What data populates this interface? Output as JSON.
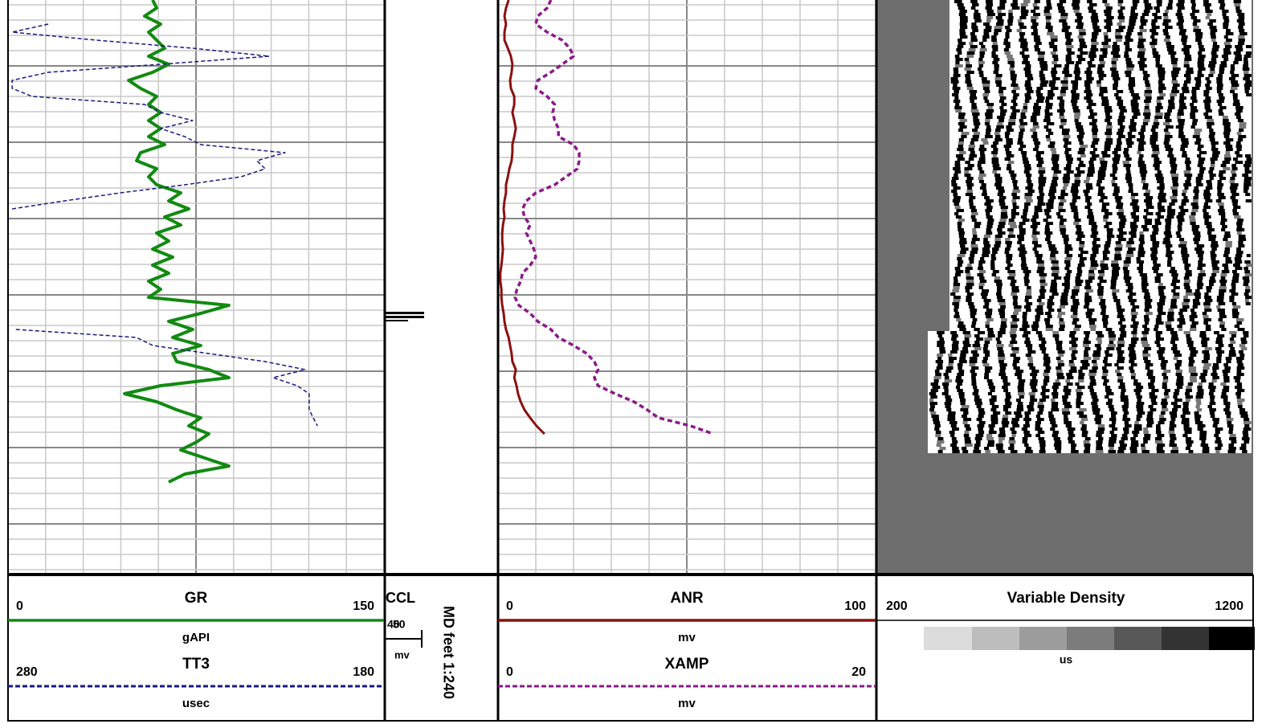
{
  "tracks": [
    {
      "curves": [
        {
          "name": "GR",
          "unit": "gAPI",
          "scale": [
            0,
            150
          ],
          "color": "#128a12",
          "dash": false,
          "values": [
            57.7,
            59.3,
            54.5,
            60.9,
            56.1,
            59.3,
            62.5,
            56.1,
            64.1,
            57.7,
            48.1,
            52.9,
            59.3,
            56.1,
            60.9,
            56.1,
            60.9,
            56.1,
            62.5,
            52.9,
            51.3,
            59.3,
            56.1,
            59.3,
            68.9,
            64.1,
            72.1,
            62.5,
            68.9,
            59.3,
            64.1,
            57.7,
            65.7,
            57.7,
            64.1,
            56.1,
            60.9,
            56.1,
            88.1,
            76.9,
            64.1,
            73.7,
            65.7,
            76.9,
            65.7,
            67.3,
            80.1,
            88.1,
            60.9,
            46.5,
            59.3,
            67.3,
            76.9,
            72.1,
            80.1,
            75.3,
            68.9,
            78.5,
            88.1,
            70.5,
            64.1
          ]
        },
        {
          "name": "TT3",
          "unit": "usec",
          "scale": [
            280,
            180
          ],
          "color": "#1a1a80",
          "dash": true,
          "values": [
            null,
            null,
            null,
            269.3,
            278.9,
            256.5,
            230.9,
            210.5,
            239.4,
            269.3,
            278.9,
            278.9,
            273.6,
            243.7,
            239.4,
            230.9,
            239.4,
            233.0,
            228.7,
            206.3,
            213.8,
            211.6,
            218.0,
            233.0,
            250.1,
            265.0,
            278.9,
            null,
            null,
            null,
            null,
            null,
            null,
            null,
            null,
            null,
            null,
            null,
            null,
            null,
            null,
            277.9,
            245.8,
            241.5,
            226.6,
            211.6,
            200.9,
            209.5,
            203.1,
            199.9,
            199.9,
            199.9,
            198.8,
            197.7,
            null,
            null,
            null,
            null,
            null,
            null,
            null
          ]
        }
      ]
    },
    {
      "curves": [
        {
          "name": "ANR",
          "unit": "mv",
          "scale": [
            0,
            100
          ],
          "color": "#8b1010",
          "dash": false,
          "values": [
            2.8,
            2.1,
            1.7,
            2.1,
            1.7,
            1.7,
            2.6,
            3.4,
            3.8,
            3.6,
            3.2,
            3.4,
            4.3,
            4.3,
            3.8,
            4.3,
            4.7,
            4.3,
            3.8,
            3.8,
            3.6,
            3.0,
            2.6,
            2.1,
            2.1,
            1.7,
            1.5,
            1.7,
            1.3,
            1.1,
            1.1,
            1.3,
            1.1,
            0.9,
            0.6,
            0.6,
            0.9,
            0.9,
            1.1,
            1.5,
            1.7,
            2.1,
            2.8,
            3.2,
            3.6,
            3.8,
            4.7,
            4.3,
            4.9,
            5.3,
            6.0,
            7.0,
            8.5,
            10.2,
            12.3,
            null,
            null,
            null,
            null,
            null,
            null
          ]
        },
        {
          "name": "XAMP",
          "unit": "mv",
          "scale": [
            0,
            20
          ],
          "color": "#8a1a8a",
          "dash": true,
          "values": [
            2.8,
            2.6,
            2.1,
            2.0,
            2.6,
            3.4,
            3.8,
            4.0,
            3.4,
            2.8,
            2.1,
            2.0,
            2.6,
            3.0,
            2.9,
            3.0,
            3.2,
            3.2,
            4.0,
            4.3,
            4.3,
            4.2,
            3.6,
            3.0,
            2.0,
            1.5,
            1.3,
            1.4,
            1.7,
            1.5,
            1.7,
            1.9,
            2.0,
            1.7,
            1.3,
            1.2,
            1.0,
            0.9,
            1.1,
            1.7,
            2.1,
            2.8,
            3.2,
            4.0,
            4.7,
            5.1,
            5.3,
            5.1,
            5.3,
            6.2,
            7.2,
            7.9,
            8.5,
            10.2,
            11.4,
            null,
            null,
            null,
            null,
            null,
            null
          ]
        }
      ]
    }
  ],
  "ccl": {
    "name": "CCL",
    "unit": "mv",
    "scale": [
      40,
      50
    ]
  },
  "depth_label": "MD feet 1:240",
  "vdl": {
    "name": "Variable Density",
    "unit": "us",
    "scale": [
      200,
      1200
    ]
  }
}
